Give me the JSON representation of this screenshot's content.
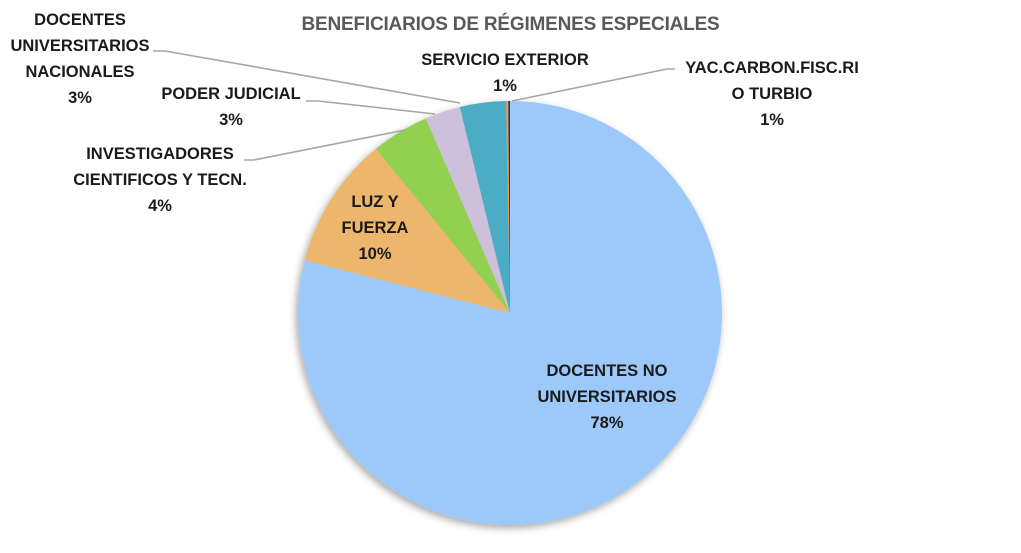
{
  "chart_data": {
    "type": "pie",
    "title": "BENEFICIARIOS DE RÉGIMENES ESPECIALES",
    "start_angle_deg": 0,
    "direction": "clockwise",
    "categories": [
      "DOCENTES NO UNIVERSITARIOS",
      "LUZ Y FUERZA",
      "INVESTIGADORES CIENTIFICOS Y TECN.",
      "PODER JUDICIAL",
      "DOCENTES UNIVERSITARIOS NACIONALES",
      "SERVICIO EXTERIOR",
      "YAC.CARBON.FISC.RIO TURBIO"
    ],
    "values": [
      78,
      10,
      4,
      3,
      3,
      1,
      1
    ],
    "slice_fractions_estimated": [
      0.79,
      0.101,
      0.044,
      0.027,
      0.035,
      0.0017,
      0.0013
    ],
    "colors": [
      "#9DC9FA",
      "#EDB66C",
      "#92D050",
      "#CCC0DA",
      "#4BACC6",
      "#E59A59",
      "#1F3864"
    ],
    "legend": "none (data labels with leader lines)",
    "labels": {
      "docentes_no_univ": [
        "DOCENTES NO",
        "UNIVERSITARIOS",
        "78%"
      ],
      "luz_fuerza": [
        "LUZ Y",
        "FUERZA",
        "10%"
      ],
      "investigadores": [
        "INVESTIGADORES",
        "CIENTIFICOS Y TECN.",
        "4%"
      ],
      "poder_judicial": [
        "PODER JUDICIAL",
        "3%"
      ],
      "docentes_univ": [
        "DOCENTES",
        "UNIVERSITARIOS",
        "NACIONALES",
        "3%"
      ],
      "servicio_exterior": [
        "SERVICIO EXTERIOR",
        "1%"
      ],
      "yac_carbon": [
        "YAC.CARBON.FISC.RI",
        "O TURBIO",
        "1%"
      ]
    }
  }
}
